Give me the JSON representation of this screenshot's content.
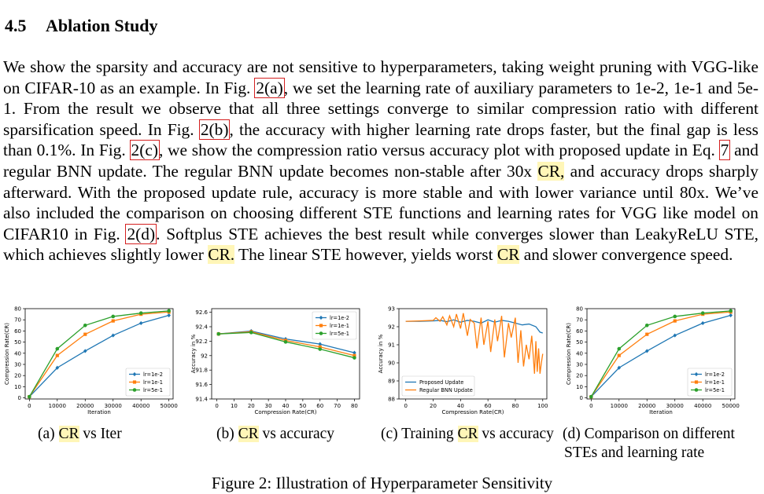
{
  "section": {
    "number": "4.5",
    "title": "Ablation Study"
  },
  "paragraph": [
    {
      "t": "We show the sparsity and accuracy are not sensitive to hyperparameters, taking weight pruning with VGG-like on CIFAR-10 as an example. In Fig. "
    },
    {
      "t": "2(a)",
      "s": "ref"
    },
    {
      "t": ", we set the learning rate of auxiliary parameters to 1e-2, 1e-1 and 5e-1. From the result we observe that all three settings converge to similar compression ratio with different sparsification speed. In Fig. "
    },
    {
      "t": "2(b)",
      "s": "ref"
    },
    {
      "t": ", the accuracy with higher learning rate drops faster, but the final gap is less than 0.1%. In Fig. "
    },
    {
      "t": "2(c)",
      "s": "ref"
    },
    {
      "t": ", we show the compression ratio versus accuracy plot with proposed update in Eq. "
    },
    {
      "t": "7",
      "s": "ref"
    },
    {
      "t": " and regular BNN update.  The regular BNN update becomes non-stable after 30x "
    },
    {
      "t": "CR,",
      "s": "hl"
    },
    {
      "t": " and accuracy drops sharply afterward.  With the proposed update rule, accuracy is more stable and with lower variance until 80x. We’ve also included the comparison on choosing different STE functions and learning rates for VGG like model on CIFAR10 in Fig. "
    },
    {
      "t": "2(d)",
      "s": "ref"
    },
    {
      "t": ". Softplus STE achieves the best result while converges slower than LeakyReLU STE, which achieves slightly lower "
    },
    {
      "t": "CR.",
      "s": "hl"
    },
    {
      "t": " The linear STE however, yields worst "
    },
    {
      "t": "CR",
      "s": "hl"
    },
    {
      "t": " and slower convergence speed."
    }
  ],
  "captions": {
    "a": {
      "label": "(a) ",
      "hl": "CR",
      "rest": " vs Iter"
    },
    "b": {
      "label": "(b) ",
      "hl": "CR",
      "rest": " vs accuracy"
    },
    "c": {
      "label": "(c) Training ",
      "hl": "CR",
      "rest": " vs accuracy"
    },
    "d": {
      "line1": "(d) Comparison on different",
      "line2": "STEs and learning rate"
    }
  },
  "figure_caption": "Figure 2: Illustration of Hyperparameter Sensitivity",
  "colors": {
    "blue": "#1f77b4",
    "orange": "#ff7f0e",
    "green": "#2ca02c",
    "ref_box": "#d42020",
    "highlight": "#fff6b8"
  },
  "chart_data": [
    {
      "id": "a",
      "type": "line",
      "xlabel": "Iteration",
      "ylabel": "Compression Rate(CR)",
      "xlim": [
        -1500,
        51500
      ],
      "ylim": [
        -1,
        80
      ],
      "xticks": [
        0,
        10000,
        20000,
        30000,
        40000,
        50000
      ],
      "yticks": [
        0,
        10,
        20,
        30,
        40,
        50,
        60,
        70,
        80
      ],
      "legend": "lower right",
      "series": [
        {
          "name": "lr=1e-2",
          "color": "#1f77b4",
          "marker": "diamond",
          "x": [
            0,
            10000,
            20000,
            30000,
            40000,
            50000
          ],
          "y": [
            1,
            27,
            42,
            56,
            67,
            74
          ]
        },
        {
          "name": "lr=1e-1",
          "color": "#ff7f0e",
          "marker": "square",
          "x": [
            0,
            10000,
            20000,
            30000,
            40000,
            50000
          ],
          "y": [
            1,
            38,
            57,
            69,
            75,
            77
          ]
        },
        {
          "name": "lr=5e-1",
          "color": "#2ca02c",
          "marker": "circle",
          "x": [
            0,
            10000,
            20000,
            30000,
            40000,
            50000
          ],
          "y": [
            1,
            44,
            65,
            73,
            76,
            78
          ]
        }
      ]
    },
    {
      "id": "b",
      "type": "line",
      "xlabel": "Compression Rate(CR)",
      "ylabel": "Accuracy in %",
      "xlim": [
        -3,
        83
      ],
      "ylim": [
        91.4,
        92.65
      ],
      "xticks": [
        0,
        10,
        20,
        30,
        40,
        50,
        60,
        70,
        80
      ],
      "yticks": [
        91.4,
        91.6,
        91.8,
        92.0,
        92.2,
        92.4,
        92.6
      ],
      "legend": "upper right",
      "series": [
        {
          "name": "lr=1e-2",
          "color": "#1f77b4",
          "marker": "diamond",
          "x": [
            1,
            20,
            40,
            60,
            80
          ],
          "y": [
            92.3,
            92.34,
            92.23,
            92.16,
            92.04
          ]
        },
        {
          "name": "lr=1e-1",
          "color": "#ff7f0e",
          "marker": "square",
          "x": [
            1,
            20,
            40,
            60,
            80
          ],
          "y": [
            92.3,
            92.33,
            92.21,
            92.12,
            92.0
          ]
        },
        {
          "name": "lr=5e-1",
          "color": "#2ca02c",
          "marker": "circle",
          "x": [
            1,
            20,
            40,
            60,
            80
          ],
          "y": [
            92.3,
            92.32,
            92.19,
            92.09,
            91.97
          ]
        }
      ]
    },
    {
      "id": "c",
      "type": "line",
      "xlabel": "Compression Rate(CR)",
      "ylabel": "Accuracy in %",
      "xlim": [
        -5,
        103
      ],
      "ylim": [
        88,
        93
      ],
      "xticks": [
        0,
        20,
        40,
        60,
        80,
        100
      ],
      "yticks": [
        88,
        89,
        90,
        91,
        92,
        93
      ],
      "legend": "lower left",
      "series": [
        {
          "name": "Proposed Update",
          "color": "#1f77b4",
          "x": [
            0,
            10,
            20,
            25,
            30,
            35,
            40,
            45,
            50,
            55,
            60,
            65,
            70,
            75,
            80,
            85,
            90,
            95,
            98,
            100
          ],
          "y": [
            92.3,
            92.3,
            92.32,
            92.35,
            92.28,
            92.38,
            92.25,
            92.35,
            92.3,
            92.2,
            92.38,
            92.25,
            92.35,
            92.3,
            92.2,
            92.1,
            92.15,
            92.0,
            91.7,
            91.65
          ]
        },
        {
          "name": "Regular BNN Update",
          "color": "#ff7f0e",
          "x": [
            0,
            10,
            20,
            22,
            25,
            27,
            30,
            32,
            35,
            37,
            40,
            42,
            45,
            47,
            50,
            52,
            55,
            57,
            60,
            62,
            65,
            67,
            70,
            72,
            75,
            77,
            80,
            82,
            84,
            86,
            88,
            90,
            92,
            94,
            95,
            96,
            97,
            98,
            99,
            100
          ],
          "y": [
            92.3,
            92.32,
            92.35,
            92.5,
            92.3,
            92.55,
            92.1,
            92.6,
            92.0,
            92.7,
            91.9,
            92.75,
            91.5,
            92.4,
            92.2,
            90.8,
            92.5,
            91.0,
            92.3,
            90.6,
            92.4,
            91.2,
            92.6,
            90.3,
            92.2,
            91.4,
            92.5,
            90.0,
            91.8,
            89.8,
            91.0,
            90.2,
            91.5,
            89.4,
            91.2,
            89.5,
            90.8,
            89.4,
            90.0,
            90.5
          ]
        }
      ]
    },
    {
      "id": "d",
      "type": "line",
      "xlabel": "Iteration",
      "ylabel": "Compression Rate(CR)",
      "xlim": [
        -1500,
        51500
      ],
      "ylim": [
        -1,
        80
      ],
      "xticks": [
        0,
        10000,
        20000,
        30000,
        40000,
        50000
      ],
      "yticks": [
        0,
        10,
        20,
        30,
        40,
        50,
        60,
        70,
        80
      ],
      "legend": "lower right",
      "series": [
        {
          "name": "lr=1e-2",
          "color": "#1f77b4",
          "marker": "diamond",
          "x": [
            0,
            10000,
            20000,
            30000,
            40000,
            50000
          ],
          "y": [
            1,
            27,
            42,
            56,
            67,
            74
          ]
        },
        {
          "name": "lr=1e-1",
          "color": "#ff7f0e",
          "marker": "square",
          "x": [
            0,
            10000,
            20000,
            30000,
            40000,
            50000
          ],
          "y": [
            1,
            38,
            57,
            69,
            75,
            77
          ]
        },
        {
          "name": "lr=5e-1",
          "color": "#2ca02c",
          "marker": "circle",
          "x": [
            0,
            10000,
            20000,
            30000,
            40000,
            50000
          ],
          "y": [
            1,
            44,
            65,
            73,
            76,
            78
          ]
        }
      ]
    }
  ]
}
